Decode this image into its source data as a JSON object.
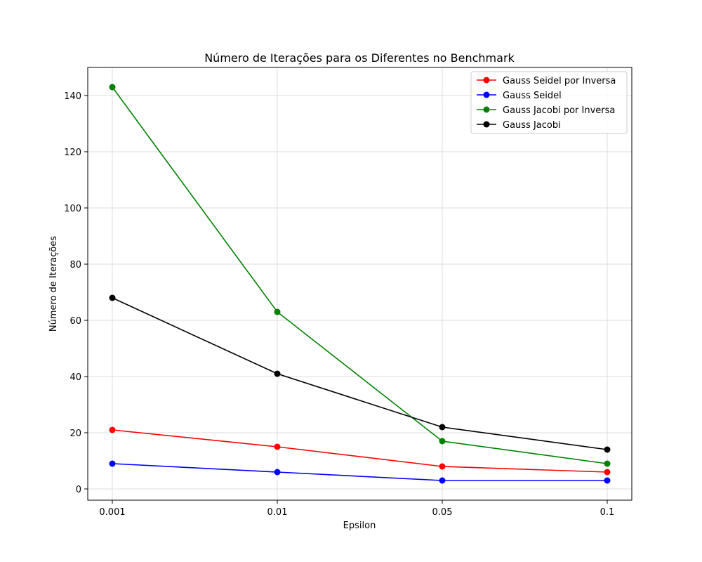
{
  "chart_data": {
    "type": "line",
    "title": "Número de Iterações para os Diferentes no Benchmark",
    "xlabel": "Epsilon",
    "ylabel": "Número de Iterações",
    "categories": [
      "0.001",
      "0.01",
      "0.05",
      "0.1"
    ],
    "ylim": [
      -4,
      150
    ],
    "yticks": [
      0,
      20,
      40,
      60,
      80,
      100,
      120,
      140
    ],
    "grid": true,
    "legend_position": "top-right",
    "series": [
      {
        "name": "Gauss Seidel por Inversa",
        "color": "#ff0000",
        "values": [
          21,
          15,
          8,
          6
        ]
      },
      {
        "name": "Gauss Seidel",
        "color": "#0000ff",
        "values": [
          9,
          6,
          3,
          3
        ]
      },
      {
        "name": "Gauss Jacobi por Inversa",
        "color": "#008000",
        "values": [
          143,
          63,
          17,
          9
        ]
      },
      {
        "name": "Gauss Jacobi",
        "color": "#000000",
        "values": [
          68,
          41,
          22,
          14
        ]
      }
    ]
  }
}
